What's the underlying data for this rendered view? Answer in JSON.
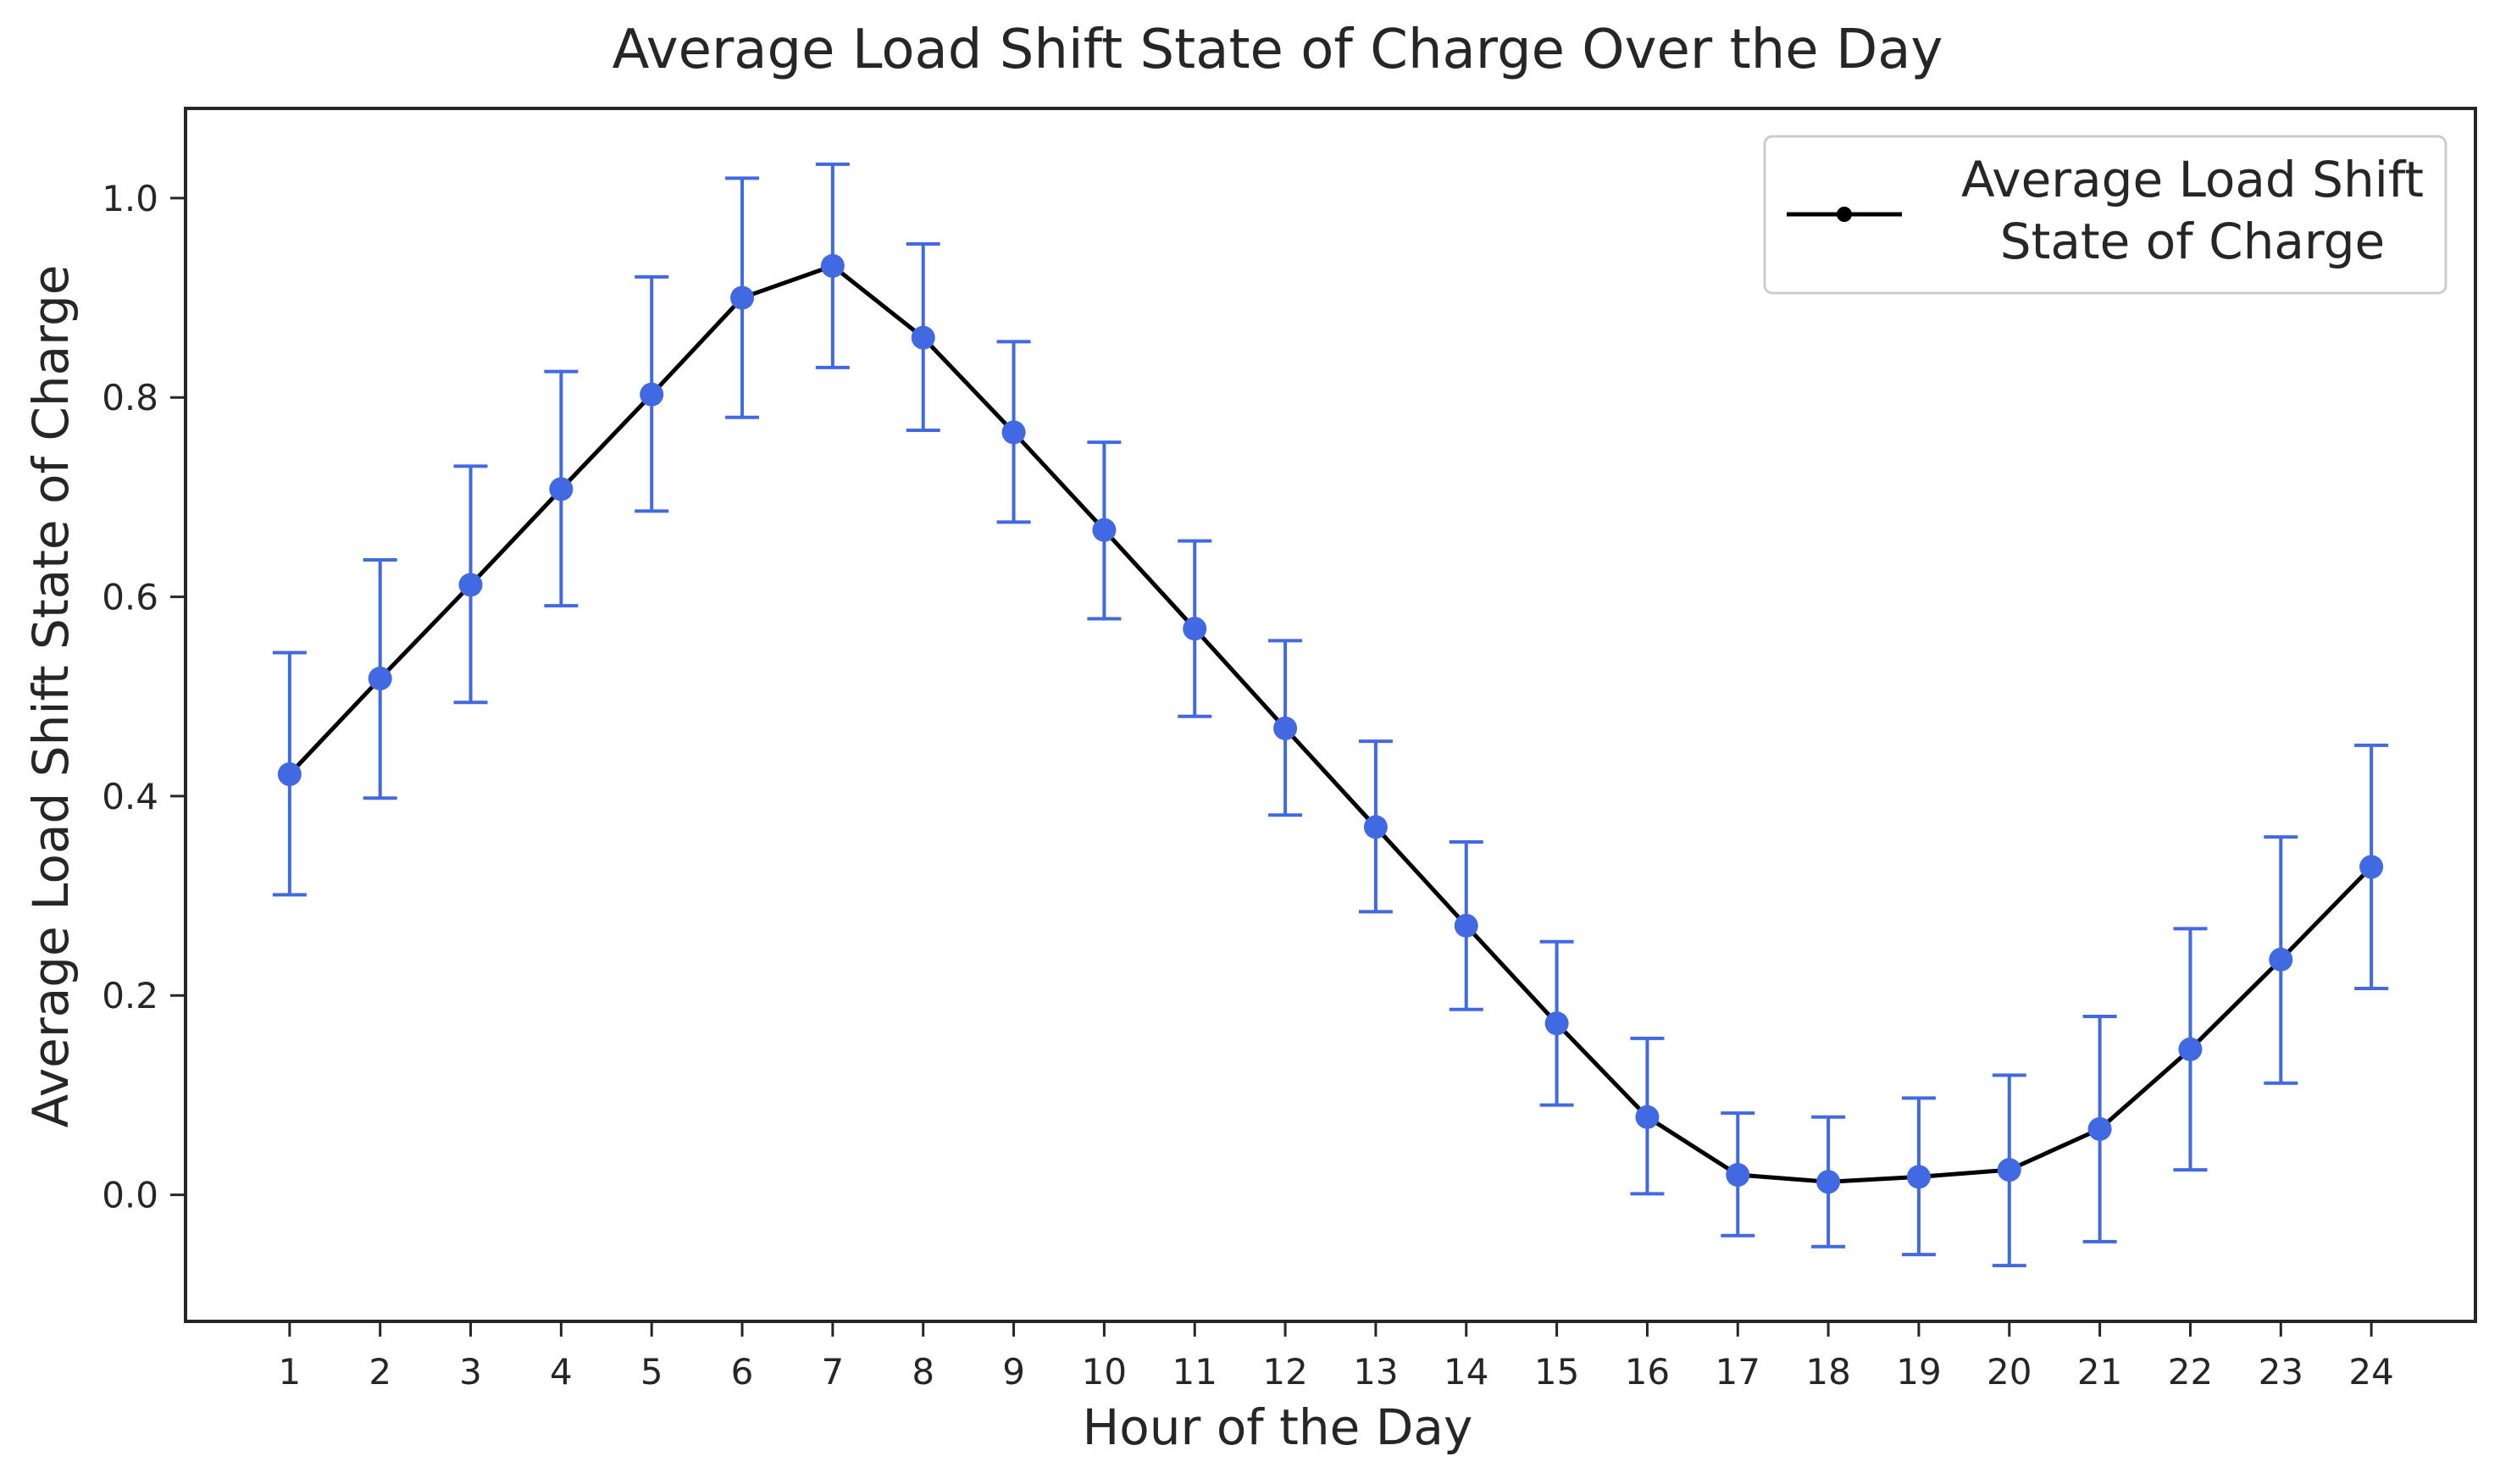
{
  "chart_data": {
    "type": "line",
    "title": "Average Load Shift State of Charge Over the Day",
    "xlabel": "Hour of the Day",
    "ylabel": "Average Load Shift State of Charge",
    "x": [
      1,
      2,
      3,
      4,
      5,
      6,
      7,
      8,
      9,
      10,
      11,
      12,
      13,
      14,
      15,
      16,
      17,
      18,
      19,
      20,
      21,
      22,
      23,
      24
    ],
    "xlim": [
      -0.15,
      25.15
    ],
    "ylim": [
      -0.127,
      1.09
    ],
    "yticks": [
      0.0,
      0.2,
      0.4,
      0.6,
      0.8,
      1.0
    ],
    "ytick_labels": [
      "0.0",
      "0.2",
      "0.4",
      "0.6",
      "0.8",
      "1.0"
    ],
    "grid": false,
    "legend_position": "top-right",
    "legend_lines": [
      "Average Load Shift",
      "State of Charge"
    ],
    "series": [
      {
        "name": "Average Load Shift State of Charge",
        "line_color": "#000000",
        "marker_color": "#4169e1",
        "errorbar_color": "#4169e1",
        "values": [
          0.422,
          0.518,
          0.612,
          0.708,
          0.803,
          0.9,
          0.932,
          0.86,
          0.765,
          0.667,
          0.568,
          0.468,
          0.369,
          0.27,
          0.172,
          0.078,
          0.02,
          0.013,
          0.018,
          0.025,
          0.066,
          0.146,
          0.236,
          0.329
        ],
        "err_low": [
          0.301,
          0.398,
          0.494,
          0.591,
          0.686,
          0.78,
          0.83,
          0.767,
          0.675,
          0.578,
          0.48,
          0.381,
          0.284,
          0.186,
          0.09,
          0.001,
          -0.041,
          -0.052,
          -0.06,
          -0.071,
          -0.047,
          0.025,
          0.112,
          0.207
        ],
        "err_high": [
          0.544,
          0.637,
          0.731,
          0.826,
          0.921,
          1.02,
          1.034,
          0.954,
          0.856,
          0.755,
          0.656,
          0.556,
          0.455,
          0.354,
          0.254,
          0.157,
          0.082,
          0.078,
          0.097,
          0.12,
          0.179,
          0.267,
          0.359,
          0.451
        ]
      }
    ]
  }
}
